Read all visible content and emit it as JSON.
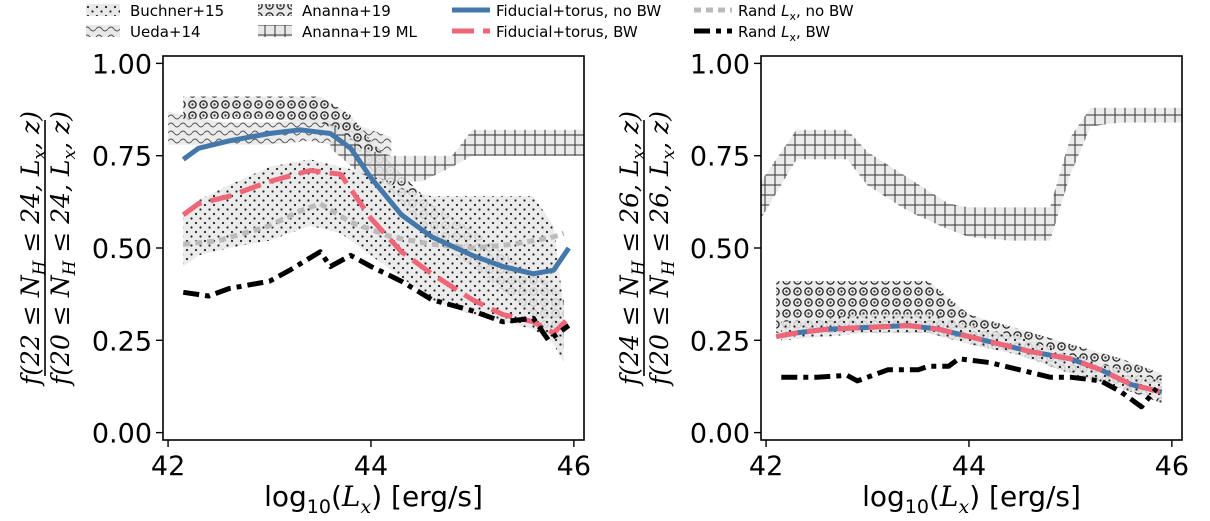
{
  "legend": [
    {
      "key": "buchner15",
      "label": "Buchner+15",
      "kind": "patch",
      "pattern": "dots"
    },
    {
      "key": "ueda14",
      "label": "Ueda+14",
      "kind": "patch",
      "pattern": "waves"
    },
    {
      "key": "ananna19",
      "label": "Ananna+19",
      "kind": "patch",
      "pattern": "circles"
    },
    {
      "key": "ananna19ml",
      "label": "Ananna+19 ML",
      "kind": "patch",
      "pattern": "grid"
    },
    {
      "key": "fid_nobw",
      "label": "Fiducial+torus, no BW",
      "kind": "line",
      "color": "#4477aa",
      "dash": "",
      "width": 5
    },
    {
      "key": "fid_bw",
      "label": "Fiducial+torus, BW",
      "kind": "line",
      "color": "#ee6677",
      "dash": "22 9",
      "width": 5
    },
    {
      "key": "rand_nobw",
      "label": "Rand Lx, no BW",
      "label_main": "Rand ",
      "label_var": "L",
      "label_sub": "x",
      "label_end": ", no BW",
      "kind": "line",
      "color": "#bbbbbb",
      "dash": "7 5",
      "width": 5
    },
    {
      "key": "rand_bw",
      "label": "Rand Lx, BW",
      "label_main": "Rand ",
      "label_var": "L",
      "label_sub": "x",
      "label_end": ", BW",
      "kind": "line",
      "color": "#000000",
      "dash": "16 6 5 6",
      "width": 5
    }
  ],
  "colors": {
    "patch_fill": "#e8e8e8",
    "patch_edge": "#333333",
    "fid_nobw": "#4477aa",
    "fid_bw": "#ee6677",
    "rand_nobw": "#bbbbbb",
    "rand_bw": "#000000"
  },
  "chart_data": [
    {
      "type": "line",
      "panel": "left",
      "xlabel": "log10(Lx) [erg/s]",
      "ylabel": "f(22 ≤ NH ≤ 24, Lx, z) / f(20 ≤ NH ≤ 24, Lx, z)",
      "ylabel_num": "f(22 ≤ NH ≤ 24, Lx, z)",
      "ylabel_den": "f(20 ≤ NH ≤ 24, Lx, z)",
      "xlim": [
        41.95,
        46.1
      ],
      "ylim": [
        -0.02,
        1.02
      ],
      "xticks": [
        42,
        44,
        46
      ],
      "xtick_labels": [
        "42",
        "44",
        "46"
      ],
      "yticks": [
        0.0,
        0.25,
        0.5,
        0.75,
        1.0
      ],
      "ytick_labels": [
        "0.00",
        "0.25",
        "0.50",
        "0.75",
        "1.00"
      ],
      "bands": [
        {
          "key": "ueda14",
          "pattern": "waves",
          "x": [
            42.0,
            42.3,
            42.6,
            43.0,
            43.4,
            43.8,
            44.2
          ],
          "upper": [
            0.87,
            0.85,
            0.84,
            0.84,
            0.85,
            0.84,
            0.8
          ],
          "lower": [
            0.78,
            0.78,
            0.78,
            0.78,
            0.79,
            0.77,
            0.72
          ]
        },
        {
          "key": "ananna19",
          "pattern": "circles",
          "x": [
            42.15,
            42.5,
            43.0,
            43.5,
            43.8,
            44.0,
            44.3,
            44.6,
            45.0,
            45.5,
            45.8,
            45.9
          ],
          "upper": [
            0.91,
            0.91,
            0.91,
            0.91,
            0.86,
            0.79,
            0.7,
            0.62,
            0.55,
            0.45,
            0.4,
            0.36
          ],
          "lower": [
            0.85,
            0.85,
            0.85,
            0.84,
            0.8,
            0.71,
            0.62,
            0.52,
            0.45,
            0.34,
            0.26,
            0.23
          ]
        },
        {
          "key": "buchner15",
          "pattern": "dots",
          "x": [
            42.15,
            42.3,
            42.6,
            43.0,
            43.4,
            43.7,
            44.0,
            44.3,
            44.6,
            45.0,
            45.3,
            45.6,
            45.8,
            45.9
          ],
          "upper": [
            0.59,
            0.63,
            0.67,
            0.72,
            0.74,
            0.72,
            0.7,
            0.66,
            0.64,
            0.64,
            0.64,
            0.64,
            0.56,
            0.34
          ],
          "lower": [
            0.45,
            0.48,
            0.5,
            0.52,
            0.56,
            0.54,
            0.48,
            0.42,
            0.36,
            0.32,
            0.3,
            0.28,
            0.24,
            0.19
          ]
        },
        {
          "key": "ananna19ml",
          "pattern": "grid",
          "x": [
            43.6,
            43.9,
            44.2,
            44.5,
            44.8,
            45.0,
            45.3,
            45.6,
            45.9,
            46.1
          ],
          "upper": [
            0.84,
            0.77,
            0.75,
            0.75,
            0.75,
            0.82,
            0.82,
            0.82,
            0.82,
            0.82
          ],
          "lower": [
            0.77,
            0.7,
            0.68,
            0.68,
            0.72,
            0.75,
            0.75,
            0.75,
            0.75,
            0.75
          ]
        }
      ],
      "series": [
        {
          "key": "rand_nobw",
          "x": [
            42.15,
            42.5,
            43.0,
            43.3,
            43.5,
            43.8,
            44.2,
            44.6,
            45.0,
            45.4,
            45.8,
            45.9
          ],
          "y": [
            0.51,
            0.52,
            0.56,
            0.6,
            0.62,
            0.57,
            0.53,
            0.51,
            0.5,
            0.51,
            0.53,
            0.54
          ]
        },
        {
          "key": "fid_nobw",
          "x": [
            42.15,
            42.3,
            42.6,
            43.0,
            43.3,
            43.6,
            43.8,
            44.0,
            44.3,
            44.6,
            45.0,
            45.3,
            45.6,
            45.8,
            45.95
          ],
          "y": [
            0.74,
            0.77,
            0.79,
            0.81,
            0.82,
            0.81,
            0.77,
            0.69,
            0.59,
            0.53,
            0.48,
            0.45,
            0.43,
            0.44,
            0.5
          ]
        },
        {
          "key": "fid_bw",
          "x": [
            42.15,
            42.3,
            42.6,
            43.0,
            43.4,
            43.7,
            44.0,
            44.3,
            44.6,
            45.0,
            45.3,
            45.6,
            45.8,
            45.95
          ],
          "y": [
            0.59,
            0.62,
            0.64,
            0.68,
            0.71,
            0.7,
            0.58,
            0.49,
            0.43,
            0.36,
            0.32,
            0.3,
            0.27,
            0.31
          ]
        },
        {
          "key": "rand_bw",
          "x": [
            42.15,
            42.4,
            42.6,
            43.0,
            43.2,
            43.5,
            43.6,
            43.8,
            44.0,
            44.3,
            44.6,
            45.0,
            45.3,
            45.6,
            45.75,
            45.95
          ],
          "y": [
            0.38,
            0.37,
            0.39,
            0.41,
            0.44,
            0.49,
            0.45,
            0.48,
            0.45,
            0.41,
            0.36,
            0.33,
            0.3,
            0.31,
            0.25,
            0.29
          ]
        }
      ]
    },
    {
      "type": "line",
      "panel": "right",
      "xlabel": "log10(Lx) [erg/s]",
      "ylabel": "f(24 ≤ NH ≤ 26, Lx, z) / f(20 ≤ NH ≤ 26, Lx, z)",
      "ylabel_num": "f(24 ≤ NH ≤ 26, Lx, z)",
      "ylabel_den": "f(20 ≤ NH ≤ 26, Lx, z)",
      "xlim": [
        41.95,
        46.1
      ],
      "ylim": [
        -0.02,
        1.02
      ],
      "xticks": [
        42,
        44,
        46
      ],
      "xtick_labels": [
        "42",
        "44",
        "46"
      ],
      "yticks": [
        0.0,
        0.25,
        0.5,
        0.75,
        1.0
      ],
      "ytick_labels": [
        "0.00",
        "0.25",
        "0.50",
        "0.75",
        "1.00"
      ],
      "bands": [
        {
          "key": "ananna19ml",
          "pattern": "grid",
          "x": [
            41.95,
            42.3,
            42.8,
            43.0,
            43.4,
            43.8,
            44.0,
            44.4,
            44.8,
            45.0,
            45.2,
            45.5,
            45.9,
            46.1
          ],
          "upper": [
            0.68,
            0.82,
            0.82,
            0.76,
            0.69,
            0.62,
            0.61,
            0.61,
            0.61,
            0.8,
            0.88,
            0.88,
            0.88,
            0.88
          ],
          "lower": [
            0.58,
            0.74,
            0.74,
            0.67,
            0.6,
            0.55,
            0.53,
            0.52,
            0.52,
            0.7,
            0.83,
            0.84,
            0.84,
            0.84
          ]
        },
        {
          "key": "ananna19",
          "pattern": "circles",
          "x": [
            42.1,
            42.5,
            43.0,
            43.6,
            44.0,
            44.5,
            45.0,
            45.5,
            45.9
          ],
          "upper": [
            0.41,
            0.41,
            0.41,
            0.41,
            0.32,
            0.28,
            0.24,
            0.2,
            0.16
          ],
          "lower": [
            0.27,
            0.27,
            0.27,
            0.27,
            0.24,
            0.21,
            0.16,
            0.12,
            0.08
          ]
        },
        {
          "key": "buchner15",
          "pattern": "dots",
          "x": [
            42.15,
            42.6,
            43.0,
            43.6,
            44.0,
            44.5,
            45.0,
            45.5,
            45.9
          ],
          "upper": [
            0.3,
            0.31,
            0.32,
            0.32,
            0.29,
            0.26,
            0.21,
            0.17,
            0.14
          ],
          "lower": [
            0.25,
            0.26,
            0.27,
            0.27,
            0.24,
            0.21,
            0.16,
            0.12,
            0.09
          ]
        }
      ],
      "series": [
        {
          "key": "fid_nobw",
          "x": [
            42.1,
            42.3,
            42.6,
            43.0,
            43.4,
            43.7,
            44.0,
            44.3,
            44.6,
            45.0,
            45.3,
            45.6,
            45.9
          ],
          "y": [
            0.26,
            0.27,
            0.28,
            0.285,
            0.29,
            0.28,
            0.26,
            0.24,
            0.22,
            0.2,
            0.17,
            0.13,
            0.11
          ]
        },
        {
          "key": "fid_bw",
          "x": [
            42.1,
            42.3,
            42.6,
            43.0,
            43.4,
            43.7,
            44.0,
            44.3,
            44.6,
            45.0,
            45.3,
            45.6,
            45.9
          ],
          "y": [
            0.26,
            0.27,
            0.28,
            0.285,
            0.29,
            0.28,
            0.26,
            0.24,
            0.22,
            0.2,
            0.17,
            0.13,
            0.11
          ]
        },
        {
          "key": "rand_bw",
          "x": [
            42.15,
            42.5,
            42.8,
            42.9,
            43.2,
            43.5,
            43.6,
            43.8,
            43.9,
            44.2,
            44.5,
            44.8,
            45.0,
            45.3,
            45.5,
            45.7,
            45.85
          ],
          "y": [
            0.15,
            0.15,
            0.155,
            0.14,
            0.17,
            0.17,
            0.18,
            0.18,
            0.2,
            0.19,
            0.17,
            0.15,
            0.15,
            0.14,
            0.11,
            0.07,
            0.12
          ]
        }
      ]
    }
  ]
}
